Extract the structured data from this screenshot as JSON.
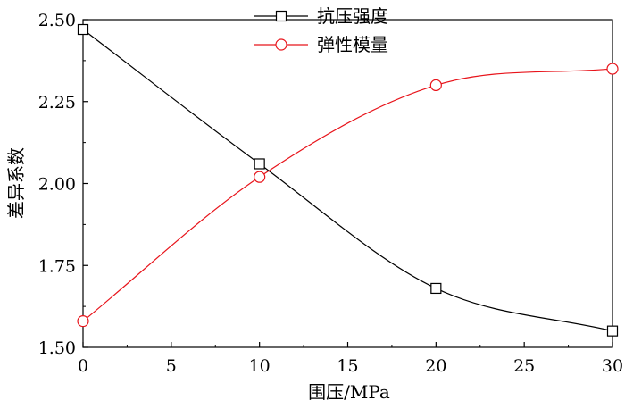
{
  "chart_data": {
    "type": "line",
    "x": [
      0,
      10,
      20,
      30
    ],
    "xlabel": "围压/MPa",
    "ylabel": "差异系数",
    "xlim": [
      0,
      30
    ],
    "ylim": [
      1.5,
      2.5
    ],
    "xticks": [
      0,
      5,
      10,
      15,
      20,
      25,
      30
    ],
    "yticks": [
      1.5,
      1.75,
      2.0,
      2.25,
      2.5
    ],
    "xtick_labels": [
      "0",
      "5",
      "10",
      "15",
      "20",
      "25",
      "30"
    ],
    "ytick_labels": [
      "1.50",
      "1.75",
      "2.00",
      "2.25",
      "2.50"
    ],
    "grid": false,
    "legend_position": "top-center",
    "series": [
      {
        "name": "抗压强度",
        "values": [
          2.47,
          2.06,
          1.68,
          1.55
        ],
        "color": "#000000",
        "marker": "square"
      },
      {
        "name": "弹性模量",
        "values": [
          1.58,
          2.02,
          2.3,
          2.35
        ],
        "color": "#e8141b",
        "marker": "circle"
      }
    ]
  }
}
